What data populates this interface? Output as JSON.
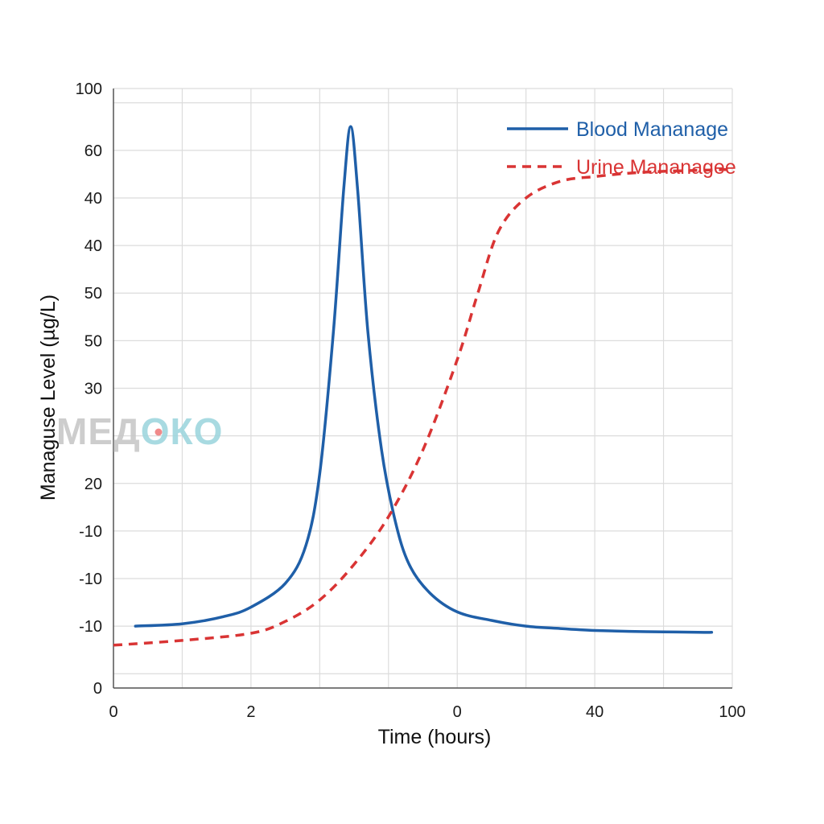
{
  "watermark": {
    "text": "МЕДОКО",
    "colors": {
      "dark": "#c8c8c8",
      "accent": "#9fd6de",
      "dot": "#f08a8a"
    }
  },
  "chart_data": {
    "type": "line",
    "xlabel": "Time (hours)",
    "ylabel": "Managuse Level (µg/L)",
    "x_tick_labels": [
      "0",
      "",
      "2",
      "",
      "",
      "0",
      "",
      "40",
      "",
      "100"
    ],
    "y_tick_labels": [
      "0",
      "",
      "-10",
      "-10",
      "-10",
      "20",
      "",
      "30",
      "50",
      "50",
      "40",
      "40",
      "60",
      "100"
    ],
    "grid": true,
    "legend_position": "top-right",
    "xlim": [
      0,
      9
    ],
    "ylim": [
      0,
      12.6
    ],
    "series": [
      {
        "name": "Blood Mananage",
        "color": "#1f5fa8",
        "style": "solid",
        "x": [
          0.32,
          1.0,
          1.6,
          2.0,
          2.5,
          2.8,
          3.0,
          3.2,
          3.35,
          3.45,
          3.55,
          3.7,
          3.9,
          4.1,
          4.3,
          4.6,
          5.0,
          5.5,
          6.0,
          6.5,
          7.0,
          7.5,
          8.0,
          8.5,
          8.7
        ],
        "y": [
          1.3,
          1.35,
          1.5,
          1.7,
          2.2,
          3.0,
          4.5,
          7.5,
          10.5,
          11.8,
          10.5,
          7.5,
          5.0,
          3.5,
          2.6,
          2.0,
          1.6,
          1.42,
          1.3,
          1.25,
          1.21,
          1.19,
          1.18,
          1.17,
          1.17
        ]
      },
      {
        "name": "Urine Mananagee",
        "color": "#d93434",
        "style": "dashed",
        "x": [
          0,
          1.0,
          2.0,
          2.5,
          3.0,
          3.5,
          4.0,
          4.5,
          5.0,
          5.3,
          5.6,
          6.0,
          6.5,
          7.0,
          7.5,
          8.0,
          8.5,
          9.0
        ],
        "y": [
          0.9,
          1.0,
          1.15,
          1.4,
          1.85,
          2.6,
          3.6,
          5.0,
          6.9,
          8.3,
          9.6,
          10.3,
          10.65,
          10.75,
          10.82,
          10.86,
          10.88,
          10.9
        ]
      }
    ]
  }
}
